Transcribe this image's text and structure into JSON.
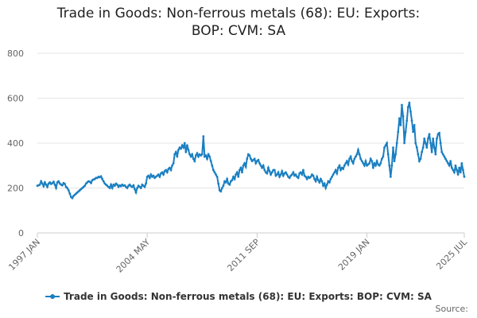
{
  "chart_data": {
    "type": "line",
    "title": "Trade in Goods: Non-ferrous metals (68): EU: Exports: BOP: CVM: SA",
    "source": "Source:",
    "legend": "bottom",
    "grid": true,
    "ylim": [
      0,
      800
    ],
    "yticks": [
      0,
      200,
      400,
      600,
      800
    ],
    "categories": [
      "1997 JAN",
      null,
      null,
      null,
      null,
      null,
      null,
      null,
      null,
      null,
      null,
      null,
      null,
      null,
      null,
      null,
      null,
      null,
      null,
      null,
      null,
      null,
      null,
      null,
      null,
      null,
      null,
      null,
      null,
      null,
      null,
      null,
      null,
      null,
      null,
      null,
      null,
      null,
      null,
      null,
      null,
      null,
      null,
      null,
      null,
      null,
      null,
      null,
      null,
      null,
      null,
      null,
      null,
      null,
      null,
      null,
      null,
      null,
      null,
      null,
      null,
      null,
      null,
      null,
      null,
      null,
      null,
      null,
      null,
      null,
      null,
      null,
      null,
      null,
      null,
      null,
      null,
      null,
      null,
      null,
      null,
      null,
      null,
      null,
      null,
      null,
      null,
      null,
      "2004 MAY",
      null,
      null,
      null,
      null,
      null,
      null,
      null,
      null,
      null,
      null,
      null,
      null,
      null,
      null,
      null,
      null,
      null,
      null,
      null,
      null,
      null,
      null,
      null,
      null,
      null,
      null,
      null,
      null,
      null,
      null,
      null,
      null,
      null,
      null,
      null,
      null,
      null,
      null,
      null,
      null,
      null,
      null,
      null,
      null,
      null,
      null,
      null,
      null,
      null,
      null,
      null,
      null,
      null,
      null,
      null,
      null,
      null,
      null,
      null,
      null,
      null,
      null,
      null,
      null,
      null,
      null,
      null,
      null,
      null,
      null,
      null,
      null,
      null,
      null,
      null,
      null,
      null,
      null,
      null,
      null,
      null,
      null,
      null,
      null,
      null,
      null,
      null,
      "2011 SEP",
      null,
      null,
      null,
      null,
      null,
      null,
      null,
      null,
      null,
      null,
      null,
      null,
      null,
      null,
      null,
      null,
      null,
      null,
      null,
      null,
      null,
      null,
      null,
      null,
      null,
      null,
      null,
      null,
      null,
      null,
      null,
      null,
      null,
      null,
      null,
      null,
      null,
      null,
      null,
      null,
      null,
      null,
      null,
      null,
      null,
      null,
      null,
      null,
      null,
      null,
      null,
      null,
      null,
      null,
      null,
      null,
      null,
      null,
      null,
      null,
      null,
      null,
      null,
      null,
      null,
      null,
      null,
      null,
      null,
      null,
      null,
      null,
      null,
      null,
      null,
      null,
      null,
      null,
      null,
      null,
      null,
      null,
      null,
      null,
      null,
      null,
      null,
      "2019 JAN",
      null,
      null,
      null,
      null,
      null,
      null,
      null,
      null,
      null,
      null,
      null,
      null,
      null,
      null,
      null,
      null,
      null,
      null,
      null,
      null,
      null,
      null,
      null,
      null,
      null,
      null,
      null,
      null,
      null,
      null,
      null,
      null,
      null,
      null,
      null,
      null,
      null,
      null,
      null,
      null,
      null,
      null,
      null,
      null,
      null,
      null,
      null,
      null,
      null,
      null,
      null,
      null,
      null,
      null,
      null,
      null,
      null,
      null,
      null,
      null,
      null,
      null,
      null,
      null,
      null,
      null,
      null,
      null,
      null,
      null,
      null,
      null,
      null,
      null,
      null,
      null,
      null,
      "2025 JUL"
    ],
    "series": [
      {
        "name": "Trade in Goods: Non-ferrous metals (68): EU: Exports: BOP: CVM: SA",
        "color": "#1a7fc1",
        "values": [
          210,
          212,
          215,
          230,
          220,
          208,
          225,
          215,
          205,
          220,
          225,
          218,
          222,
          228,
          215,
          200,
          225,
          230,
          220,
          215,
          212,
          222,
          218,
          205,
          200,
          190,
          175,
          160,
          155,
          165,
          170,
          175,
          180,
          185,
          190,
          195,
          200,
          205,
          210,
          220,
          225,
          230,
          228,
          222,
          235,
          238,
          240,
          245,
          245,
          250,
          248,
          252,
          240,
          230,
          220,
          215,
          210,
          205,
          200,
          215,
          200,
          215,
          210,
          220,
          215,
          205,
          212,
          208,
          215,
          210,
          212,
          205,
          200,
          210,
          215,
          208,
          205,
          212,
          195,
          180,
          200,
          210,
          205,
          200,
          215,
          210,
          205,
          220,
          250,
          255,
          245,
          260,
          250,
          255,
          245,
          250,
          255,
          260,
          250,
          265,
          270,
          260,
          275,
          280,
          270,
          285,
          290,
          280,
          300,
          310,
          350,
          360,
          340,
          370,
          380,
          375,
          390,
          380,
          400,
          360,
          390,
          370,
          350,
          340,
          350,
          330,
          320,
          345,
          355,
          340,
          350,
          345,
          350,
          430,
          340,
          345,
          330,
          350,
          340,
          320,
          300,
          280,
          270,
          260,
          250,
          220,
          190,
          185,
          200,
          210,
          230,
          225,
          240,
          220,
          215,
          230,
          235,
          250,
          240,
          260,
          270,
          250,
          280,
          290,
          270,
          300,
          310,
          295,
          330,
          350,
          345,
          330,
          320,
          325,
          330,
          310,
          320,
          325,
          310,
          300,
          290,
          300,
          280,
          270,
          265,
          290,
          275,
          260,
          270,
          280,
          280,
          255,
          260,
          270,
          250,
          260,
          275,
          255,
          265,
          270,
          260,
          250,
          245,
          255,
          260,
          270,
          255,
          260,
          250,
          245,
          265,
          270,
          260,
          280,
          255,
          250,
          240,
          250,
          245,
          250,
          260,
          255,
          240,
          230,
          250,
          235,
          225,
          240,
          230,
          210,
          220,
          200,
          215,
          230,
          225,
          240,
          250,
          260,
          270,
          280,
          265,
          290,
          300,
          280,
          290,
          285,
          300,
          310,
          320,
          305,
          330,
          340,
          320,
          310,
          330,
          340,
          350,
          370,
          350,
          330,
          320,
          310,
          300,
          320,
          300,
          305,
          310,
          330,
          320,
          290,
          310,
          300,
          320,
          305,
          300,
          310,
          330,
          340,
          380,
          390,
          400,
          350,
          300,
          250,
          300,
          380,
          320,
          350,
          400,
          450,
          510,
          480,
          570,
          520,
          400,
          450,
          500,
          560,
          580,
          540,
          500,
          450,
          480,
          400,
          380,
          350,
          320,
          330,
          360,
          380,
          420,
          400,
          380,
          420,
          440,
          400,
          360,
          420,
          380,
          350,
          420,
          440,
          445,
          400,
          360,
          350,
          340,
          330,
          320,
          310,
          300,
          320,
          290,
          280,
          270,
          300,
          280,
          260,
          290,
          270,
          310,
          280,
          250
        ]
      }
    ]
  }
}
